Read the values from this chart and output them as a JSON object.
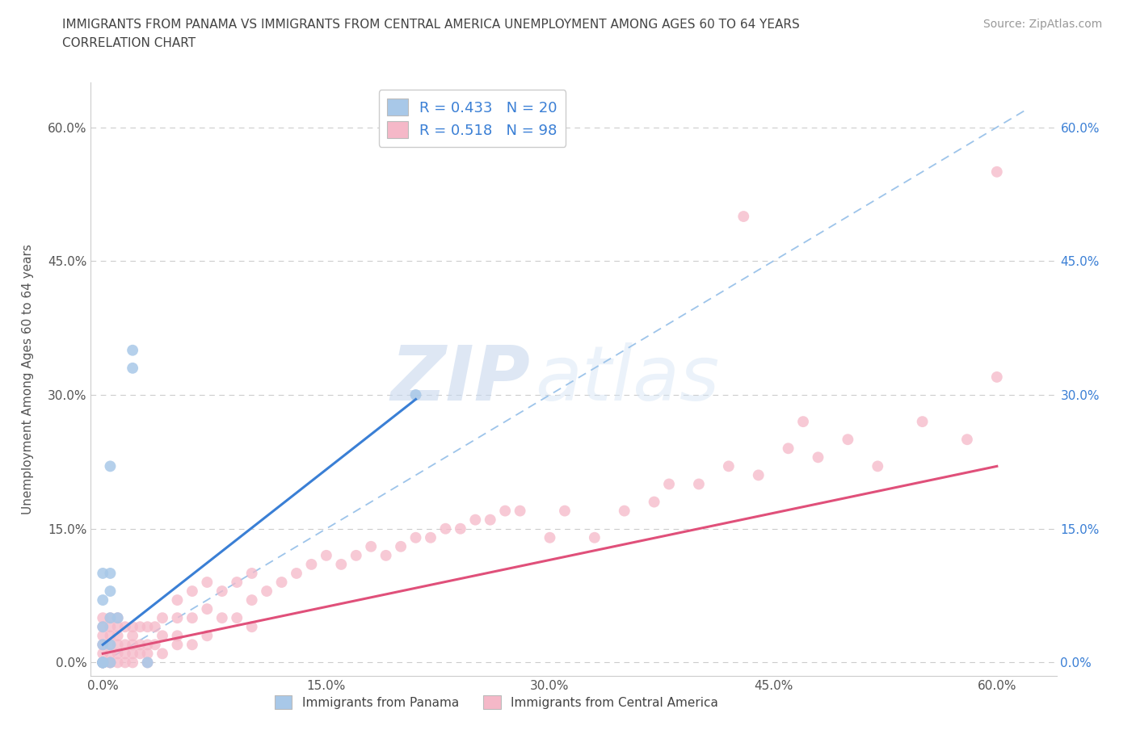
{
  "title_line1": "IMMIGRANTS FROM PANAMA VS IMMIGRANTS FROM CENTRAL AMERICA UNEMPLOYMENT AMONG AGES 60 TO 64 YEARS",
  "title_line2": "CORRELATION CHART",
  "source": "Source: ZipAtlas.com",
  "ylabel": "Unemployment Among Ages 60 to 64 years",
  "watermark_zip": "ZIP",
  "watermark_atlas": "atlas",
  "panama_color": "#a8c8e8",
  "panama_line_color": "#3a7fd5",
  "central_america_color": "#f5b8c8",
  "central_america_line_color": "#e0507a",
  "diag_line_color": "#9dc4ea",
  "background_color": "#ffffff",
  "xtick_values": [
    0.0,
    0.15,
    0.3,
    0.45,
    0.6
  ],
  "ytick_values": [
    0.0,
    0.15,
    0.3,
    0.45,
    0.6
  ],
  "R_panama": 0.433,
  "N_panama": 20,
  "R_central": 0.518,
  "N_central": 98,
  "panama_x": [
    0.0,
    0.0,
    0.0,
    0.0,
    0.0,
    0.005,
    0.005,
    0.005,
    0.005,
    0.005,
    0.005,
    0.01,
    0.02,
    0.02,
    0.03,
    0.21,
    0.0,
    0.0,
    0.0,
    0.0
  ],
  "panama_y": [
    0.0,
    0.02,
    0.04,
    0.07,
    0.1,
    0.0,
    0.02,
    0.05,
    0.08,
    0.1,
    0.22,
    0.05,
    0.33,
    0.35,
    0.0,
    0.3,
    0.0,
    0.0,
    0.0,
    0.0
  ],
  "panama_trend_x0": 0.0,
  "panama_trend_x1": 0.21,
  "panama_trend_y0": 0.02,
  "panama_trend_y1": 0.295,
  "ca_trend_x0": 0.0,
  "ca_trend_x1": 0.6,
  "ca_trend_y0": 0.01,
  "ca_trend_y1": 0.22,
  "ca_x": [
    0.0,
    0.0,
    0.0,
    0.0,
    0.0,
    0.0,
    0.0,
    0.0,
    0.0,
    0.0,
    0.005,
    0.005,
    0.005,
    0.005,
    0.005,
    0.005,
    0.005,
    0.01,
    0.01,
    0.01,
    0.01,
    0.01,
    0.01,
    0.015,
    0.015,
    0.015,
    0.015,
    0.02,
    0.02,
    0.02,
    0.02,
    0.02,
    0.025,
    0.025,
    0.025,
    0.03,
    0.03,
    0.03,
    0.03,
    0.035,
    0.035,
    0.04,
    0.04,
    0.04,
    0.05,
    0.05,
    0.05,
    0.05,
    0.06,
    0.06,
    0.06,
    0.07,
    0.07,
    0.07,
    0.08,
    0.08,
    0.09,
    0.09,
    0.1,
    0.1,
    0.1,
    0.11,
    0.12,
    0.13,
    0.14,
    0.15,
    0.16,
    0.17,
    0.18,
    0.19,
    0.2,
    0.21,
    0.22,
    0.23,
    0.24,
    0.25,
    0.26,
    0.27,
    0.28,
    0.3,
    0.31,
    0.33,
    0.35,
    0.37,
    0.38,
    0.4,
    0.42,
    0.44,
    0.46,
    0.48,
    0.5,
    0.52,
    0.55,
    0.58,
    0.6,
    0.6,
    0.43,
    0.47
  ],
  "ca_y": [
    0.0,
    0.0,
    0.0,
    0.0,
    0.0,
    0.01,
    0.02,
    0.03,
    0.04,
    0.05,
    0.0,
    0.0,
    0.01,
    0.02,
    0.03,
    0.04,
    0.05,
    0.0,
    0.01,
    0.02,
    0.03,
    0.04,
    0.05,
    0.0,
    0.01,
    0.02,
    0.04,
    0.0,
    0.01,
    0.02,
    0.03,
    0.04,
    0.01,
    0.02,
    0.04,
    0.0,
    0.01,
    0.02,
    0.04,
    0.02,
    0.04,
    0.01,
    0.03,
    0.05,
    0.02,
    0.03,
    0.05,
    0.07,
    0.02,
    0.05,
    0.08,
    0.03,
    0.06,
    0.09,
    0.05,
    0.08,
    0.05,
    0.09,
    0.04,
    0.07,
    0.1,
    0.08,
    0.09,
    0.1,
    0.11,
    0.12,
    0.11,
    0.12,
    0.13,
    0.12,
    0.13,
    0.14,
    0.14,
    0.15,
    0.15,
    0.16,
    0.16,
    0.17,
    0.17,
    0.14,
    0.17,
    0.14,
    0.17,
    0.18,
    0.2,
    0.2,
    0.22,
    0.21,
    0.24,
    0.23,
    0.25,
    0.22,
    0.27,
    0.25,
    0.32,
    0.55,
    0.5,
    0.27
  ]
}
